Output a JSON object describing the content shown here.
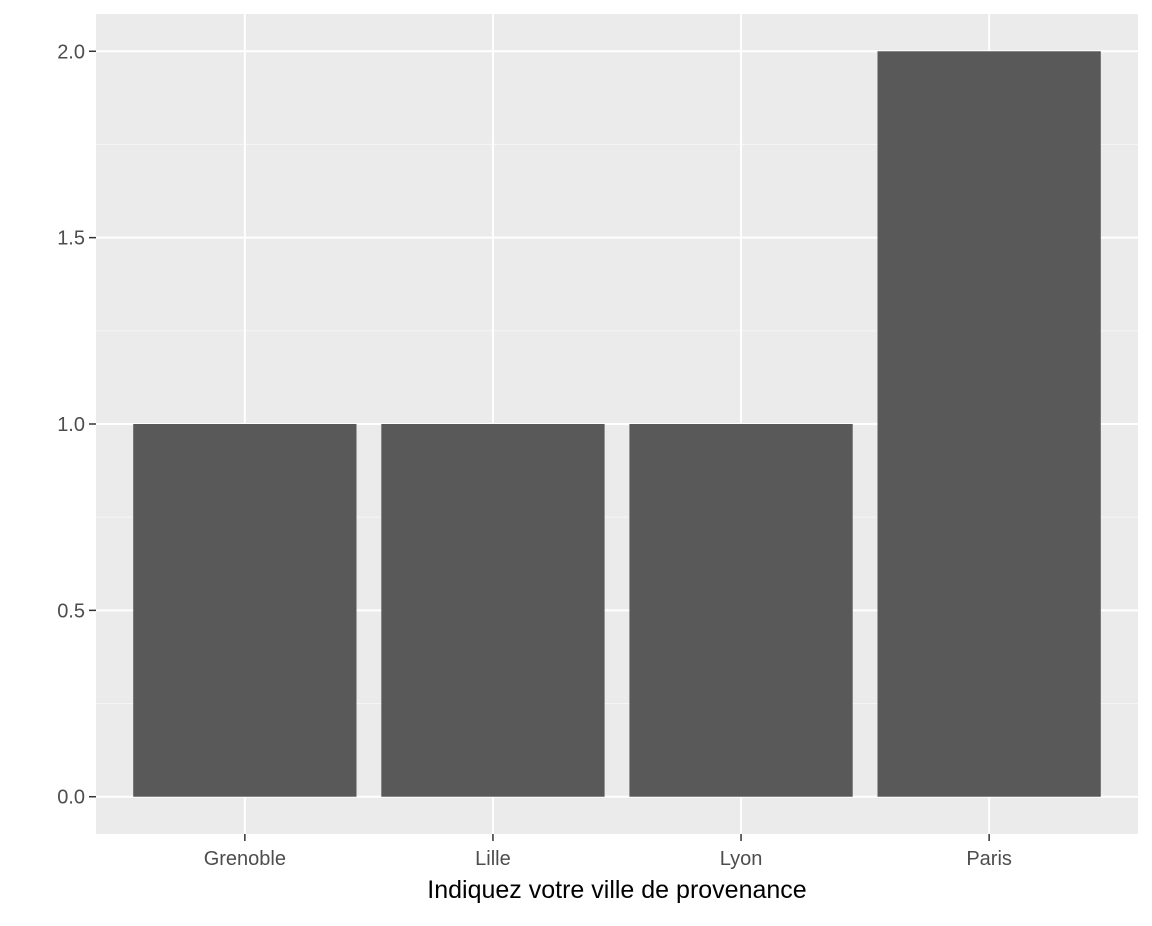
{
  "chart_data": {
    "type": "bar",
    "title": "",
    "xlabel": "Indiquez votre ville de provenance",
    "ylabel": "",
    "categories": [
      "Grenoble",
      "Lille",
      "Lyon",
      "Paris"
    ],
    "values": [
      1,
      1,
      1,
      2
    ],
    "ylim": [
      -0.1,
      2.1
    ],
    "yticks": [
      0.0,
      0.5,
      1.0,
      1.5,
      2.0
    ],
    "ytick_labels": [
      "0.0",
      "0.5",
      "1.0",
      "1.5",
      "2.0"
    ],
    "grid": true,
    "legend": "none",
    "colors": {
      "panel_background": "#ebebeb",
      "grid_major": "#ffffff",
      "grid_minor": "#f5f5f5",
      "bar_fill": "#595959",
      "tick_text": "#4d4d4d",
      "axis_title": "#000000"
    }
  }
}
